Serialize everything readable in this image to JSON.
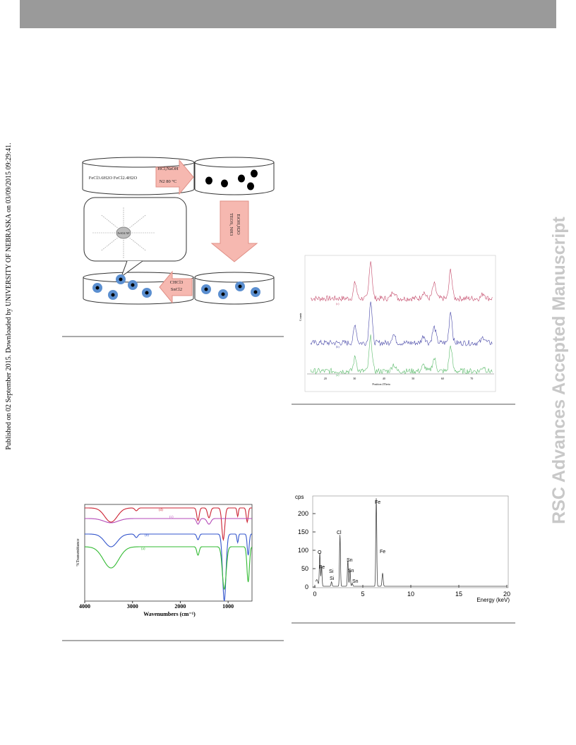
{
  "side_note": "Published on 02 September 2015. Downloaded by UNIVERSITY OF NEBRASKA on 03/09/2015 09:29:41.",
  "watermark": "RSC Advances Accepted Manuscript",
  "scheme": {
    "reagents": "FeCl3.6H2O   FeCl2.4H2O",
    "step1": [
      "HCl,NaOH",
      "N2 80 °C"
    ],
    "step2": [
      "TEOS, NH3",
      "EtOH,H2O"
    ],
    "step3": [
      "CHCl3",
      "SnCl2"
    ],
    "particle": "Fe3O4 NP"
  },
  "xrd": {
    "y_label": "Counts",
    "x_label": "Position 2Theta",
    "ticks": [
      "20",
      "30",
      "40",
      "50",
      "60",
      "70"
    ],
    "curves": [
      "(c)",
      "(b)",
      "(a)"
    ]
  },
  "ftir": {
    "y_label": "%Transmittance",
    "x_label": "Wavenumbers (cm⁻¹)",
    "ticks": [
      "4000",
      "3000",
      "2000",
      "1000"
    ],
    "curves": [
      "(d)",
      "(c)",
      "(b)",
      "(a)"
    ]
  },
  "edx": {
    "y_label": "cps",
    "x_label": "Energy (keV)",
    "yticks": [
      "200",
      "150",
      "100",
      "50",
      "0"
    ],
    "xticks": [
      "0",
      "5",
      "10",
      "15",
      "20"
    ],
    "peaks": [
      "O",
      "Fe",
      "Si",
      "Si",
      "Cl",
      "Sn",
      "Sn",
      "Sn",
      "Fe",
      "Fe"
    ]
  }
}
